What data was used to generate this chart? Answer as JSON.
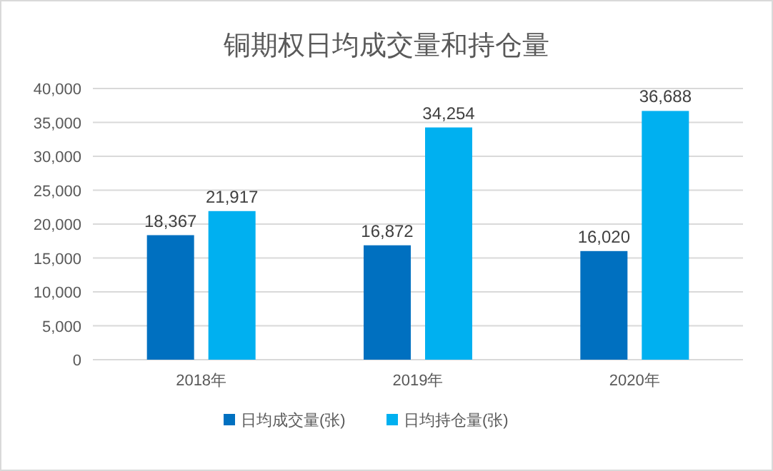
{
  "chart_data": {
    "type": "bar",
    "title": "铜期权日均成交量和持仓量",
    "categories": [
      "2018年",
      "2019年",
      "2020年"
    ],
    "series": [
      {
        "name": "日均成交量(张)",
        "color": "#0070c0",
        "values": [
          18367,
          16872,
          16020
        ],
        "value_labels": [
          "18,367",
          "16,872",
          "16,020"
        ]
      },
      {
        "name": "日均持仓量(张)",
        "color": "#00b0f0",
        "values": [
          21917,
          34254,
          36688
        ],
        "value_labels": [
          "21,917",
          "34,254",
          "36,688"
        ]
      }
    ],
    "ylim": [
      0,
      40000
    ],
    "yticks": [
      {
        "value": 0,
        "label": "0"
      },
      {
        "value": 5000,
        "label": "5,000"
      },
      {
        "value": 10000,
        "label": "10,000"
      },
      {
        "value": 15000,
        "label": "15,000"
      },
      {
        "value": 20000,
        "label": "20,000"
      },
      {
        "value": 25000,
        "label": "25,000"
      },
      {
        "value": 30000,
        "label": "30,000"
      },
      {
        "value": 35000,
        "label": "35,000"
      },
      {
        "value": 40000,
        "label": "40,000"
      }
    ],
    "grid": "y",
    "legend": "bottom"
  }
}
